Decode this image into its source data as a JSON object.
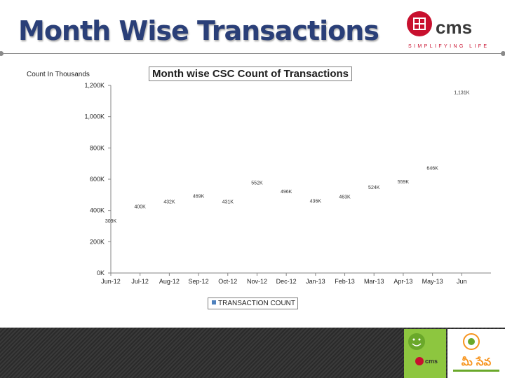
{
  "slide": {
    "title": "Month Wise Transactions",
    "brand_name": "cms",
    "brand_tagline": "SIMPLIFYING LIFE",
    "count_note": "Count In Thousands",
    "partner_logo_text": "మీ సేవ"
  },
  "colors": {
    "title": "#2a3f78",
    "brand_red": "#c8102e",
    "series": "#4f81bd",
    "footer": "#2f2f2f",
    "meeseva_green": "#8dc63f",
    "meeseva_orange": "#f7941d"
  },
  "chart_data": {
    "type": "line",
    "title": "Month wise CSC Count of Transactions",
    "y_tick_labels": [
      "0K",
      "200K",
      "400K",
      "600K",
      "800K",
      "1,000K",
      "1,200K"
    ],
    "ylim": [
      0,
      1200
    ],
    "x_tick_labels": [
      "Jun-12",
      "Jul-12",
      "Aug-12",
      "Sep-12",
      "Oct-12",
      "Nov-12",
      "Dec-12",
      "Jan-13",
      "Feb-13",
      "Mar-13",
      "Apr-13",
      "May-13",
      "Jun"
    ],
    "series": [
      {
        "name": "TRANSACTION COUNT",
        "values": [
          309,
          400,
          432,
          469,
          431,
          552,
          496,
          436,
          463,
          524,
          559,
          646,
          1131
        ],
        "data_labels": [
          "309K",
          "400K",
          "432K",
          "469K",
          "431K",
          "552K",
          "496K",
          "436K",
          "463K",
          "524K",
          "559K",
          "646K",
          "1,131K"
        ]
      }
    ],
    "legend_position": "bottom",
    "grid": false
  }
}
